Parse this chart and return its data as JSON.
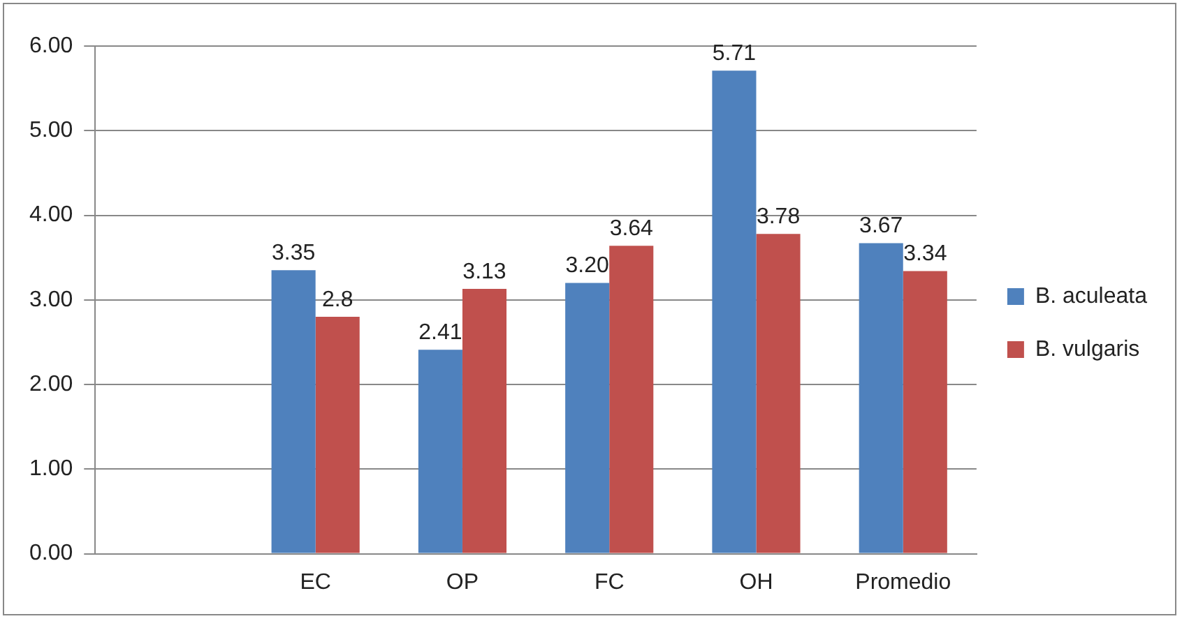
{
  "chart_data": {
    "type": "bar",
    "categories": [
      null,
      "EC",
      "OP",
      "FC",
      "OH",
      "Promedio"
    ],
    "series": [
      {
        "name": "B. aculeata",
        "color": "#4f81bd",
        "values": [
          null,
          3.35,
          2.41,
          3.2,
          5.71,
          3.67
        ],
        "value_labels": [
          null,
          "3.35",
          "2.41",
          "3.20",
          "5.71",
          "3.67"
        ]
      },
      {
        "name": "B. vulgaris",
        "color": "#c0504d",
        "values": [
          null,
          2.8,
          3.13,
          3.64,
          3.78,
          3.34
        ],
        "value_labels": [
          null,
          "2.8",
          "3.13",
          "3.64",
          "3.78",
          "3.34"
        ]
      }
    ],
    "ylim": [
      0,
      6
    ],
    "yticks": [
      {
        "value": 0,
        "label": "0.00"
      },
      {
        "value": 1,
        "label": "1.00"
      },
      {
        "value": 2,
        "label": "2.00"
      },
      {
        "value": 3,
        "label": "3.00"
      },
      {
        "value": 4,
        "label": "4.00"
      },
      {
        "value": 5,
        "label": "5.00"
      },
      {
        "value": 6,
        "label": "6.00"
      }
    ],
    "grid": "y",
    "legend": "right"
  }
}
